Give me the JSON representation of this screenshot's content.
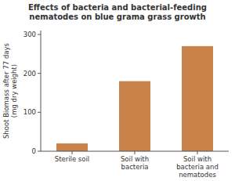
{
  "chart_data": {
    "type": "bar",
    "title": "Effects of bacteria and bacterial-feeding nematodes on blue grama grass growth",
    "ylabel": "Shoot Biomass after 77 days\n(mg dry weight)",
    "categories": [
      "Sterile soil",
      "Soil with\nbacteria",
      "Soil with\nbacteria and\nnematodes"
    ],
    "values": [
      20,
      180,
      270
    ],
    "color": "#C8824A",
    "ylim": [
      0,
      310
    ],
    "yticks": [
      0,
      100,
      200,
      300
    ],
    "grid": false
  }
}
